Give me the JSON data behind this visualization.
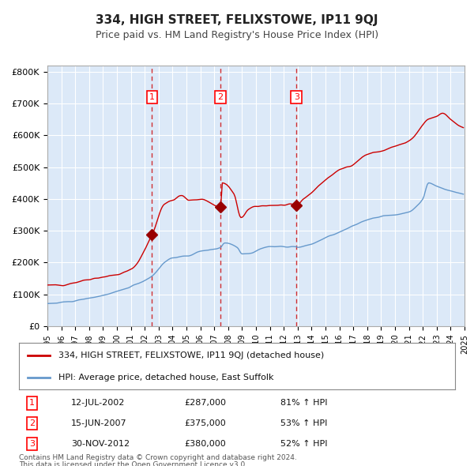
{
  "title": "334, HIGH STREET, FELIXSTOWE, IP11 9QJ",
  "subtitle": "Price paid vs. HM Land Registry's House Price Index (HPI)",
  "legend_line1": "334, HIGH STREET, FELIXSTOWE, IP11 9QJ (detached house)",
  "legend_line2": "HPI: Average price, detached house, East Suffolk",
  "transactions": [
    {
      "num": 1,
      "date": "2002-07-12",
      "price": 287000,
      "hpi_pct": "81% ↑ HPI"
    },
    {
      "num": 2,
      "date": "2007-06-15",
      "price": 375000,
      "hpi_pct": "53% ↑ HPI"
    },
    {
      "num": 3,
      "date": "2012-11-30",
      "price": 380000,
      "hpi_pct": "52% ↑ HPI"
    }
  ],
  "table_rows": [
    [
      "1",
      "12-JUL-2002",
      "£287,000",
      "81% ↑ HPI"
    ],
    [
      "2",
      "15-JUN-2007",
      "£375,000",
      "53% ↑ HPI"
    ],
    [
      "3",
      "30-NOV-2012",
      "£380,000",
      "52% ↑ HPI"
    ]
  ],
  "footnote1": "Contains HM Land Registry data © Crown copyright and database right 2024.",
  "footnote2": "This data is licensed under the Open Government Licence v3.0.",
  "ylim": [
    0,
    800000
  ],
  "yticks": [
    0,
    100000,
    200000,
    300000,
    400000,
    500000,
    600000,
    700000,
    800000
  ],
  "ytick_labels": [
    "£0",
    "£100K",
    "£200K",
    "£300K",
    "£400K",
    "£500K",
    "£600K",
    "£700K",
    "£800K"
  ],
  "xstart_year": 1995,
  "xend_year": 2025,
  "background_color": "#dce9f8",
  "plot_bg_color": "#dce9f8",
  "grid_color": "#ffffff",
  "red_line_color": "#cc0000",
  "blue_line_color": "#6699cc",
  "dashed_color": "#cc0000",
  "marker_color": "#990000"
}
